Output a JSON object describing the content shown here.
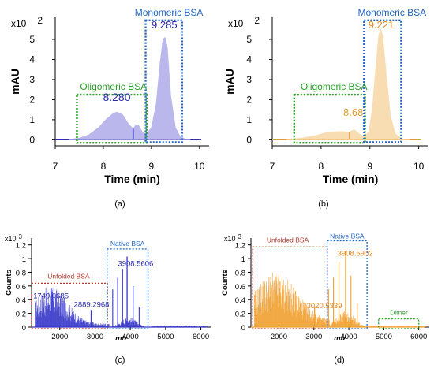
{
  "panels": [
    {
      "id": "a",
      "caption": "(a)",
      "chart_data": {
        "type": "area",
        "xlabel": "Time (min)",
        "ylabel": "mAU",
        "multiplier": "x10",
        "exponent": "2",
        "xlim": [
          7,
          10.2
        ],
        "ylim": [
          -0.3,
          6.1
        ],
        "xticks": [
          "7",
          "8",
          "9",
          "10"
        ],
        "yticks": [
          "0",
          "1",
          "2",
          "3",
          "4",
          "5"
        ],
        "fill": "#b7b4ec",
        "line": "#2f2fb5",
        "x": [
          7.3,
          7.5,
          7.7,
          7.9,
          8.05,
          8.2,
          8.28,
          8.4,
          8.52,
          8.62,
          8.68,
          8.74,
          8.82,
          8.9,
          9.0,
          9.1,
          9.18,
          9.24,
          9.285,
          9.33,
          9.4,
          9.5,
          9.6,
          9.7,
          9.8
        ],
        "y": [
          0.02,
          0.08,
          0.25,
          0.6,
          1.0,
          1.3,
          1.38,
          1.25,
          0.8,
          0.55,
          0.75,
          0.7,
          0.35,
          0.3,
          0.6,
          1.8,
          3.8,
          5.0,
          5.1,
          4.6,
          2.2,
          0.6,
          0.15,
          0.04,
          0.0
        ],
        "annotations": [
          {
            "text": "8.280",
            "color": "#2828a8"
          },
          {
            "text": "9.285",
            "color": "#ffffff"
          }
        ],
        "regions": [
          {
            "label": "Oligomeric BSA",
            "color": "#2ca02c"
          },
          {
            "label": "Monomeric BSA",
            "color": "#2366c0"
          }
        ]
      }
    },
    {
      "id": "b",
      "caption": "(b)",
      "chart_data": {
        "type": "area",
        "xlabel": "Time (min)",
        "ylabel": "mAU",
        "multiplier": "x10",
        "exponent": "2",
        "xlim": [
          7,
          10.2
        ],
        "ylim": [
          -0.3,
          6.1
        ],
        "xticks": [
          "7",
          "8",
          "9",
          "10"
        ],
        "yticks": [
          "0",
          "1",
          "2",
          "3",
          "4",
          "5"
        ],
        "fill": "#f9dcae",
        "line": "#e0a030",
        "x": [
          7.3,
          7.6,
          7.9,
          8.1,
          8.3,
          8.45,
          8.55,
          8.68,
          8.78,
          8.88,
          8.98,
          9.05,
          9.12,
          9.18,
          9.221,
          9.26,
          9.33,
          9.42,
          9.52,
          9.65,
          9.8
        ],
        "y": [
          0.02,
          0.08,
          0.22,
          0.35,
          0.4,
          0.42,
          0.35,
          0.5,
          0.3,
          0.15,
          0.4,
          1.5,
          3.6,
          5.2,
          5.5,
          5.2,
          3.4,
          1.2,
          0.3,
          0.05,
          0.0
        ],
        "annotations": [
          {
            "text": "8.68",
            "color": "#e0a030"
          },
          {
            "text": "9.221",
            "color": "#ffffff"
          }
        ],
        "regions": [
          {
            "label": "Oligomeric BSA",
            "color": "#2ca02c"
          },
          {
            "label": "Monomeric BSA",
            "color": "#2366c0"
          }
        ]
      }
    },
    {
      "id": "c",
      "caption": "(c)",
      "chart_data": {
        "type": "bar",
        "xlabel": "m/z",
        "ylabel": "Counts",
        "multiplier": "x10",
        "exponent": "3",
        "xlim": [
          1200,
          6300
        ],
        "ylim": [
          0,
          1.3
        ],
        "xticks": [
          "2000",
          "3000",
          "4000",
          "5000",
          "6000"
        ],
        "yticks": [
          "0",
          "0.2",
          "0.4",
          "0.6",
          "0.8",
          "1",
          "1.2"
        ],
        "color": "#3737c8",
        "peaks": [
          {
            "mz": 1749.0685,
            "counts": 0.56
          },
          {
            "mz": 2889.2968,
            "counts": 0.25
          },
          {
            "mz": 3908.5606,
            "counts": 1.03
          }
        ],
        "annotations": [
          {
            "text": "1749.0685",
            "color": "#2828a8"
          },
          {
            "text": "2889.2968",
            "color": "#2828a8"
          },
          {
            "text": "3908.5606",
            "color": "#2828a8"
          }
        ],
        "regions": [
          {
            "label": "Unfolded BSA",
            "color": "#b03a2e"
          },
          {
            "label": "Native BSA",
            "color": "#2366c0"
          }
        ]
      }
    },
    {
      "id": "d",
      "caption": "(d)",
      "chart_data": {
        "type": "bar",
        "xlabel": "m/z",
        "ylabel": "Counts",
        "multiplier": "x10",
        "exponent": "3",
        "xlim": [
          1200,
          6300
        ],
        "ylim": [
          0,
          1.3
        ],
        "xticks": [
          "2000",
          "3000",
          "4000",
          "5000",
          "6000"
        ],
        "yticks": [
          "0",
          "0.2",
          "0.4",
          "0.6",
          "0.8",
          "1",
          "1.2"
        ],
        "color": "#f0a030",
        "peaks": [
          {
            "mz": 3020.5339,
            "counts": 0.3
          },
          {
            "mz": 3908.5902,
            "counts": 1.12
          }
        ],
        "annotations": [
          {
            "text": "3908.5902",
            "color": "#e08820"
          },
          {
            "text": "3020.5339",
            "color": "#e08820"
          }
        ],
        "regions": [
          {
            "label": "Unfolded BSA",
            "color": "#b03a2e"
          },
          {
            "label": "Native BSA",
            "color": "#2366c0"
          },
          {
            "label": "Dimer",
            "color": "#2ca02c"
          }
        ]
      }
    }
  ]
}
